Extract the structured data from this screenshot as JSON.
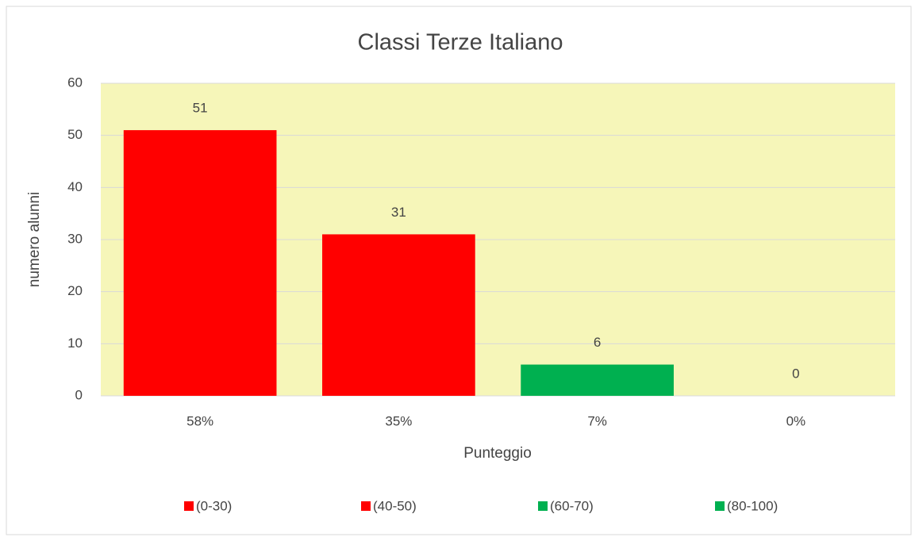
{
  "chart_data": {
    "type": "bar",
    "title": "Classi Terze Italiano",
    "x_label": "Punteggio",
    "y_label": "numero alunni",
    "categories": [
      "58%",
      "35%",
      "7%",
      "0%"
    ],
    "values": [
      51,
      31,
      6,
      0
    ],
    "colors": [
      "#ff0000",
      "#ff0000",
      "#00b050",
      "#00b050"
    ],
    "legend_labels": [
      "(0-30)",
      "(40-50)",
      "(60-70)",
      "(80-100)"
    ],
    "ylim": [
      0,
      60
    ],
    "yticks": [
      0,
      10,
      20,
      30,
      40,
      50,
      60
    ],
    "grid": true,
    "plot_background": "#f6f6b9"
  }
}
